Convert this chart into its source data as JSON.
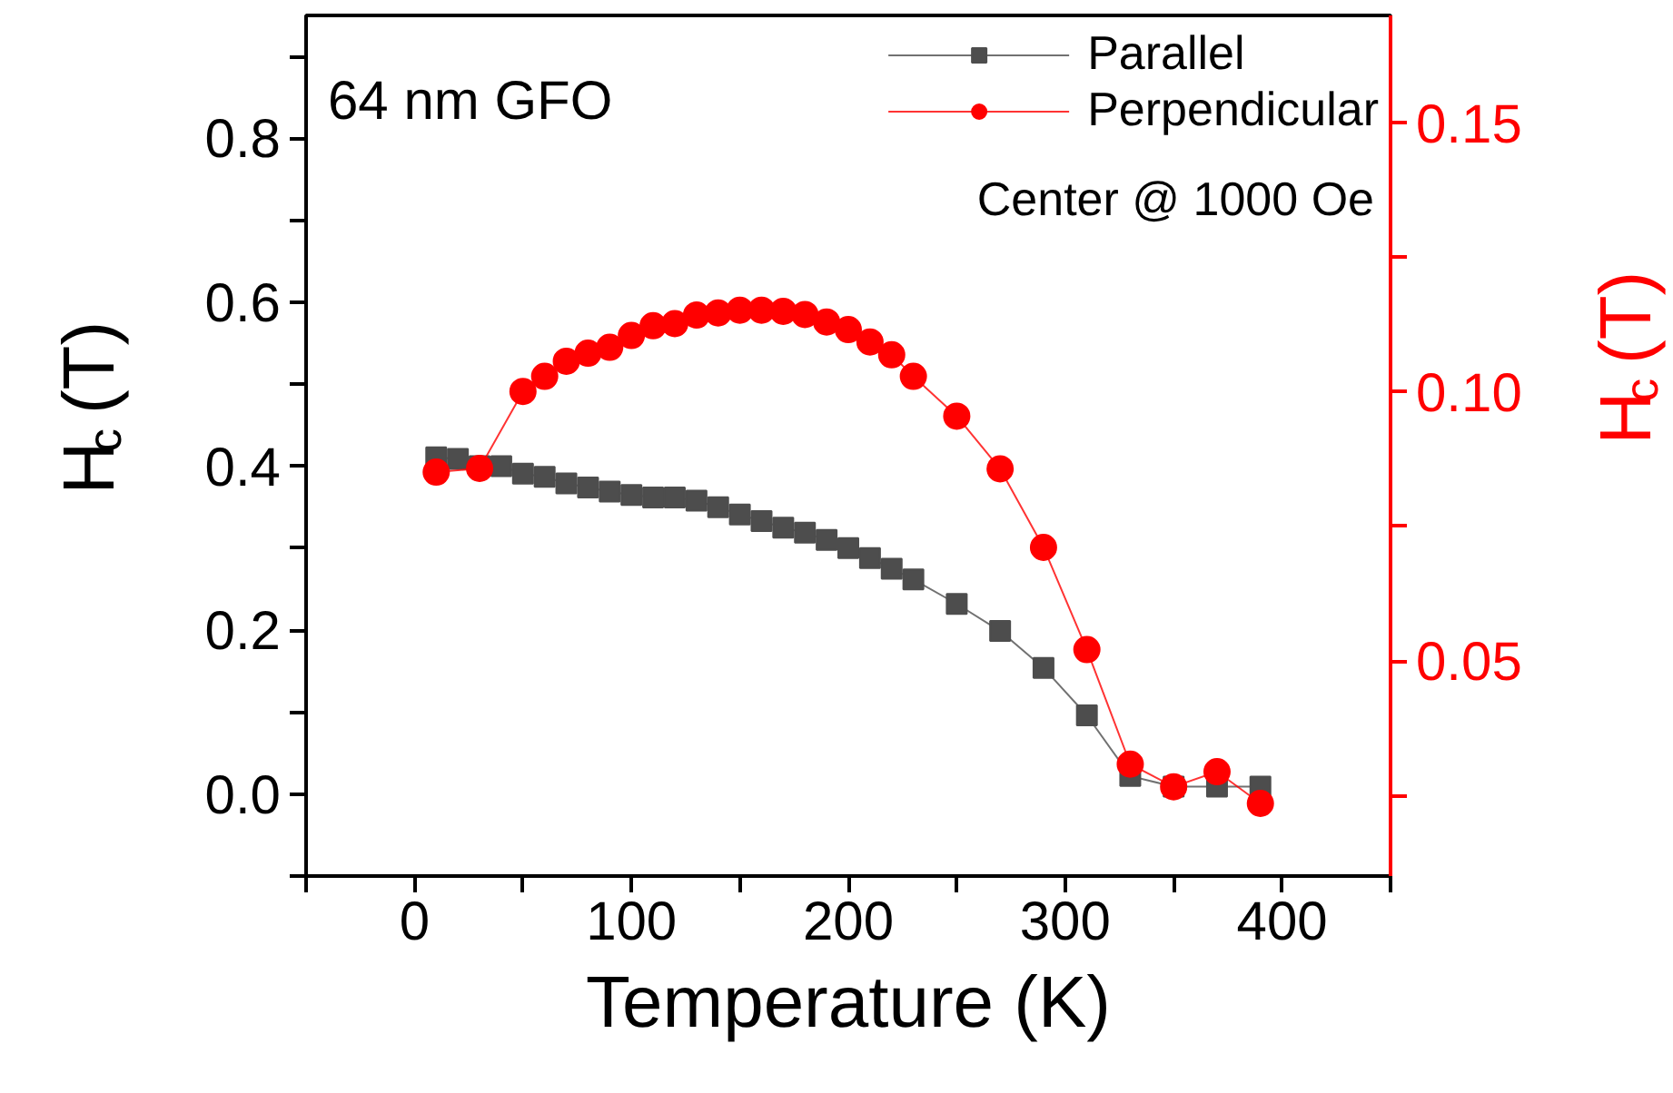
{
  "chart_data": {
    "type": "line",
    "xlabel": "Temperature (K)",
    "ylabel": "H$_{c}$ (T)",
    "y2label": "H$_{c}$ (T)",
    "annotations": [
      "64 nm GFO",
      "Center @ 1000 Oe"
    ],
    "xlim": [
      -50,
      450
    ],
    "ylim": [
      -0.1,
      0.95
    ],
    "y2lim": [
      0.01,
      0.17
    ],
    "xticks": [
      {
        "value": -50,
        "label": null
      },
      0,
      {
        "value": 50,
        "label": null
      },
      100,
      {
        "value": 150,
        "label": null
      },
      200,
      {
        "value": 250,
        "label": null
      },
      300,
      {
        "value": 350,
        "label": null
      },
      400,
      {
        "value": 450,
        "label": null
      }
    ],
    "yticks": [
      {
        "value": -0.1,
        "label": null
      },
      {
        "value": 0,
        "label": "0.0"
      },
      {
        "value": 0.1,
        "label": null
      },
      0.2,
      {
        "value": 0.3,
        "label": null
      },
      0.4,
      {
        "value": 0.5,
        "label": null
      },
      0.6,
      {
        "value": 0.7,
        "label": null
      },
      0.8,
      {
        "value": 0.9,
        "label": null
      }
    ],
    "y2ticks": [
      {
        "value": 0.025,
        "label": null
      },
      0.05,
      {
        "value": 0.075,
        "label": null
      },
      {
        "value": 0.1,
        "label": "0.10"
      },
      {
        "value": 0.125,
        "label": null
      },
      0.15
    ],
    "grid": false,
    "legend": "top right",
    "line_style": "solid",
    "series": [
      {
        "name": "Parallel",
        "color": "#4d4d4d",
        "marker": "square",
        "x": [
          10,
          20,
          30,
          40,
          50,
          60,
          70,
          80,
          90,
          100,
          110,
          120,
          130,
          140,
          150,
          160,
          170,
          180,
          190,
          200,
          210,
          220,
          230,
          250,
          270,
          290,
          310,
          330,
          350,
          370,
          390
        ],
        "values": [
          0.411,
          0.409,
          0.4,
          0.4,
          0.391,
          0.387,
          0.379,
          0.374,
          0.369,
          0.365,
          0.362,
          0.362,
          0.358,
          0.35,
          0.341,
          0.333,
          0.325,
          0.319,
          0.31,
          0.3,
          0.288,
          0.275,
          0.262,
          0.232,
          0.199,
          0.154,
          0.096,
          0.022,
          0.009,
          0.009,
          0.009
        ]
      },
      {
        "name": "Perpendicular",
        "color": "#ff0000",
        "marker": "circle",
        "axis": "y2",
        "x": [
          10,
          30,
          50,
          60,
          70,
          80,
          90,
          100,
          110,
          120,
          130,
          140,
          150,
          160,
          170,
          180,
          190,
          200,
          210,
          220,
          230,
          250,
          270,
          290,
          310,
          330,
          350,
          370,
          390
        ],
        "values": [
          0.0851,
          0.0858,
          0.1001,
          0.1029,
          0.1057,
          0.1072,
          0.1083,
          0.1105,
          0.1123,
          0.1127,
          0.1143,
          0.1147,
          0.1152,
          0.1152,
          0.115,
          0.1144,
          0.113,
          0.1116,
          0.1093,
          0.1069,
          0.1029,
          0.0955,
          0.0857,
          0.0711,
          0.0521,
          0.0308,
          0.0266,
          0.0294,
          0.0235
        ]
      }
    ]
  }
}
